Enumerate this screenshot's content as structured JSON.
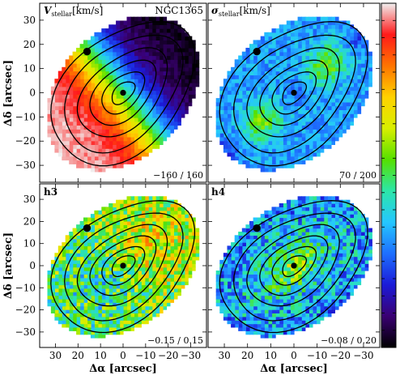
{
  "chart_data": [
    {
      "type": "heatmap",
      "panel": "top-left",
      "label_main": "V",
      "label_sub": "stellar",
      "label_unit": "[km/s]",
      "object": "NGC1365",
      "range_text": "−160 / 160",
      "vmin": -160,
      "vmax": 160,
      "field": "velocity",
      "xlim": [
        37,
        -37
      ],
      "ylim": [
        -37,
        37
      ],
      "grid": false
    },
    {
      "type": "heatmap",
      "panel": "top-right",
      "label_main": "σ",
      "label_sub": "stellar",
      "label_unit": "[km/s]",
      "range_text": "70 / 200",
      "vmin": 70,
      "vmax": 200,
      "field": "dispersion",
      "xlim": [
        37,
        -37
      ],
      "ylim": [
        -37,
        37
      ],
      "grid": false
    },
    {
      "type": "heatmap",
      "panel": "bottom-left",
      "label_main": "h3",
      "range_text": "−0.15 / 0.15",
      "vmin": -0.15,
      "vmax": 0.15,
      "field": "h3",
      "xlim": [
        37,
        -37
      ],
      "ylim": [
        -37,
        37
      ],
      "grid": false
    },
    {
      "type": "heatmap",
      "panel": "bottom-right",
      "label_main": "h4",
      "range_text": "−0.08 / 0.20",
      "vmin": -0.08,
      "vmax": 0.2,
      "field": "h4",
      "xlim": [
        37,
        -37
      ],
      "ylim": [
        -37,
        37
      ],
      "grid": false
    }
  ],
  "axes": {
    "xlabel": "Δα [arcsec]",
    "ylabel": "Δδ [arcsec]",
    "xticks": [
      30,
      20,
      10,
      0,
      -10,
      -20,
      -30
    ],
    "xtick_labels": [
      "30",
      "20",
      "10",
      "0",
      "−10",
      "−20",
      "−30"
    ],
    "yticks": [
      30,
      20,
      10,
      0,
      -10,
      -20,
      -30
    ],
    "ytick_labels": [
      "30",
      "20",
      "10",
      "0",
      "−10",
      "−20",
      "−30"
    ]
  },
  "colorbar": {
    "orientation": "vertical",
    "placement": "right",
    "colors": [
      "#000000",
      "#3a0072",
      "#1b1bd8",
      "#1e6fff",
      "#25c7ff",
      "#2ce6a8",
      "#55e000",
      "#d8ef00",
      "#ffd200",
      "#ff7400",
      "#ff1a1a",
      "#f0f0f0"
    ]
  }
}
